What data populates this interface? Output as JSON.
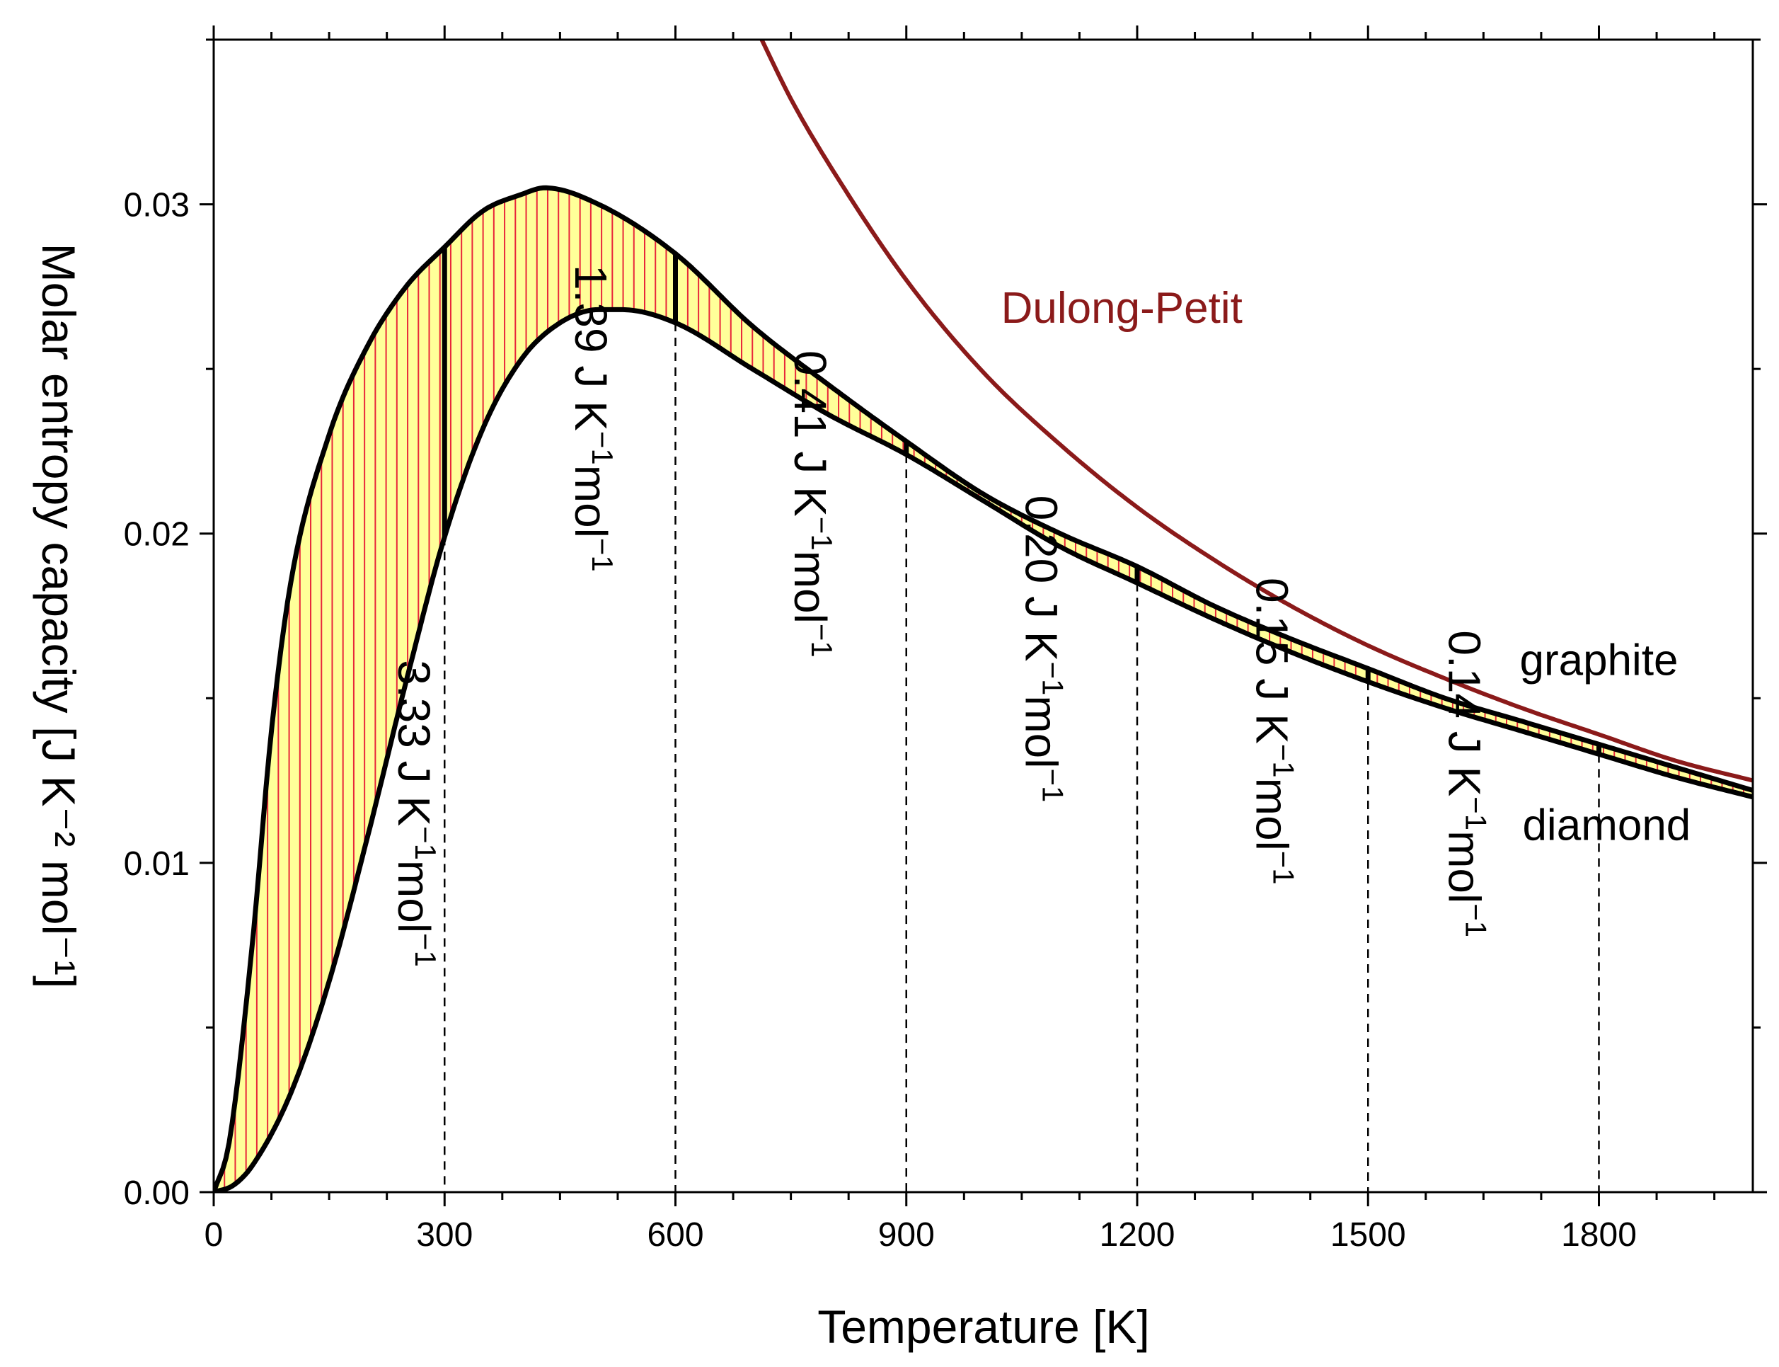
{
  "chart_data": {
    "type": "line",
    "title": "",
    "xlabel": "Temperature [K]",
    "ylabel": "Molar entropy capacity [J K⁻² mol⁻¹]",
    "xlim": [
      0,
      2000
    ],
    "ylim": [
      0,
      0.035
    ],
    "x_ticks": [
      0,
      300,
      600,
      900,
      1200,
      1500,
      1800
    ],
    "x_tick_labels": [
      "0",
      "300",
      "600",
      "900",
      "1200",
      "1500",
      "1800"
    ],
    "y_ticks": [
      0.0,
      0.01,
      0.02,
      0.03
    ],
    "y_tick_labels": [
      "0.00",
      "0.01",
      "0.02",
      "0.03"
    ],
    "series": [
      {
        "name": "graphite",
        "label": "graphite",
        "color": "#000000",
        "x": [
          0,
          20,
          50,
          75,
          100,
          150,
          200,
          250,
          300,
          350,
          400,
          430,
          500,
          600,
          700,
          800,
          900,
          1000,
          1100,
          1200,
          1300,
          1400,
          1500,
          1600,
          1700,
          1800,
          1900,
          2000
        ],
        "y": [
          0.0,
          0.0015,
          0.0075,
          0.014,
          0.0185,
          0.023,
          0.0257,
          0.0275,
          0.0287,
          0.0298,
          0.0303,
          0.0305,
          0.03,
          0.0285,
          0.0263,
          0.0245,
          0.0228,
          0.0212,
          0.02,
          0.019,
          0.0178,
          0.0168,
          0.0159,
          0.015,
          0.0143,
          0.0136,
          0.0129,
          0.0122
        ]
      },
      {
        "name": "diamond",
        "label": "diamond",
        "color": "#000000",
        "x": [
          0,
          25,
          50,
          100,
          150,
          200,
          250,
          300,
          350,
          400,
          450,
          500,
          530,
          600,
          700,
          800,
          900,
          1000,
          1100,
          1200,
          1300,
          1400,
          1500,
          1600,
          1700,
          1800,
          1900,
          2000
        ],
        "y": [
          0.0,
          0.0002,
          0.0008,
          0.003,
          0.0064,
          0.0108,
          0.0155,
          0.0199,
          0.0232,
          0.0253,
          0.0264,
          0.0268,
          0.0268,
          0.0264,
          0.025,
          0.0236,
          0.0224,
          0.021,
          0.0196,
          0.0185,
          0.0174,
          0.0164,
          0.0155,
          0.0147,
          0.014,
          0.0133,
          0.0126,
          0.012
        ]
      },
      {
        "name": "dulong-petit",
        "label": "Dulong-Petit",
        "color": "#8b1a1a",
        "x": [
          710,
          750,
          800,
          900,
          1000,
          1100,
          1200,
          1300,
          1400,
          1500,
          1600,
          1700,
          1800,
          1900,
          2000
        ],
        "y": [
          0.0351,
          0.0332,
          0.0312,
          0.0277,
          0.0249,
          0.0227,
          0.0208,
          0.0192,
          0.0178,
          0.0166,
          0.0156,
          0.0147,
          0.0139,
          0.0131,
          0.0125
        ]
      }
    ],
    "interval_boundaries": [
      300,
      600,
      900,
      1200,
      1500,
      1800
    ],
    "annotations": [
      {
        "text": "3.33 J K",
        "sup1": "−1",
        "text2": "mol",
        "sup2": "−1",
        "x": 240,
        "y": 0.0115
      },
      {
        "text": "1.39 J K",
        "sup1": "−1",
        "text2": "mol",
        "sup2": "−1",
        "x": 470,
        "y": 0.0235
      },
      {
        "text": "0.41 J K",
        "sup1": "−1",
        "text2": "mol",
        "sup2": "−1",
        "x": 755,
        "y": 0.0209
      },
      {
        "text": "0.20 J K",
        "sup1": "−1",
        "text2": "mol",
        "sup2": "−1",
        "x": 1055,
        "y": 0.0165
      },
      {
        "text": "0.15 J K",
        "sup1": "−1",
        "text2": "mol",
        "sup2": "−1",
        "x": 1355,
        "y": 0.014
      },
      {
        "text": "0.14 J K",
        "sup1": "−1",
        "text2": "mol",
        "sup2": "−1",
        "x": 1605,
        "y": 0.0124
      }
    ],
    "fill_between": {
      "upper": "graphite",
      "lower": "diamond",
      "fill_color": "#ffff99",
      "hatch_color": "#e8273a"
    }
  }
}
